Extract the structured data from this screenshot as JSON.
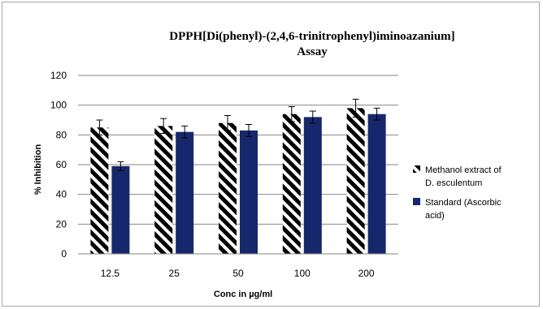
{
  "chart_data": {
    "type": "bar",
    "title": [
      "DPPH[Di(phenyl)-(2,4,6-trinitrophenyl)iminoazanium]",
      "Assay"
    ],
    "xlabel": "Conc in µg/ml",
    "ylabel": "% Inhibition",
    "categories": [
      "12.5",
      "25",
      "50",
      "100",
      "200"
    ],
    "ylim": [
      0,
      120
    ],
    "yticks": [
      "0",
      "20",
      "40",
      "60",
      "80",
      "100",
      "120"
    ],
    "grid": true,
    "legend_position": "right",
    "series": [
      {
        "name": [
          "Methanol extract of",
          "D. esculentum"
        ],
        "values": [
          85,
          86,
          88,
          94,
          98
        ],
        "errors": [
          5,
          5,
          5,
          5,
          6
        ],
        "fill": "hatch",
        "color": "#000000"
      },
      {
        "name": [
          "Standard (Ascorbic",
          "acid)"
        ],
        "values": [
          59,
          82,
          83,
          92,
          94
        ],
        "errors": [
          3,
          4,
          4,
          4,
          4
        ],
        "fill": "solid",
        "color": "#17276b"
      }
    ]
  }
}
